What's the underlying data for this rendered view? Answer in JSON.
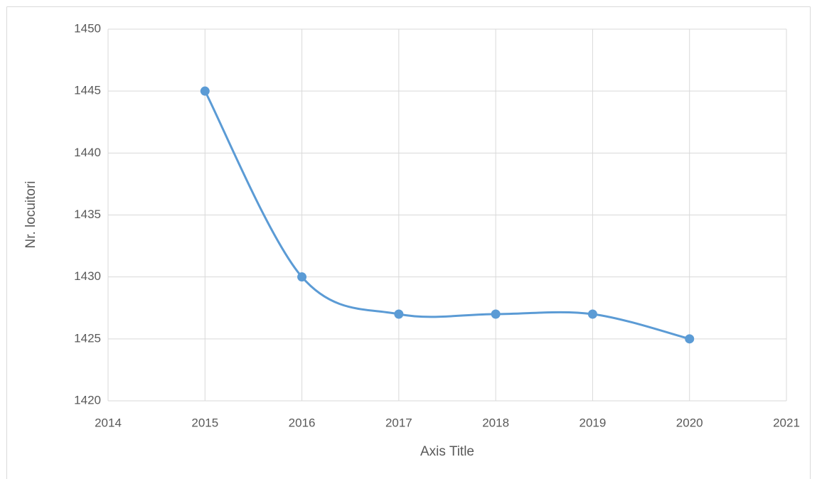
{
  "chart_data": {
    "type": "line",
    "smooth": true,
    "markers": true,
    "x_label": "Axis Title",
    "y_label": "Nr. locuitori",
    "x": [
      2015,
      2016,
      2017,
      2018,
      2019,
      2020
    ],
    "series": [
      {
        "name": "Nr. locuitori",
        "color": "#5b9bd5",
        "values": [
          1445,
          1430,
          1427,
          1427,
          1427,
          1425
        ]
      }
    ],
    "xlim": [
      2014,
      2021
    ],
    "xticks": [
      2014,
      2015,
      2016,
      2017,
      2018,
      2019,
      2020,
      2021
    ],
    "ylim": [
      1420,
      1450
    ],
    "yticks": [
      1420,
      1425,
      1430,
      1435,
      1440,
      1445,
      1450
    ],
    "grid": true,
    "legend": false
  }
}
